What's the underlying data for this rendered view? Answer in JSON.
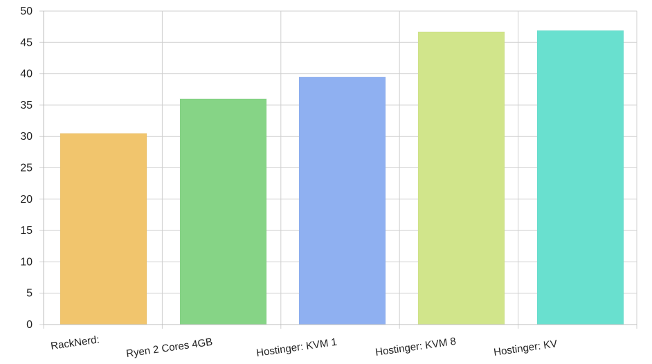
{
  "chart_data": {
    "type": "bar",
    "categories": [
      "RackNerd:",
      "Ryen 2 Cores 4GB",
      "Hostinger: KVM 1",
      "Hostinger: KVM 8",
      "Hostinger: KV"
    ],
    "values": [
      30.5,
      36.0,
      39.5,
      46.7,
      46.9
    ],
    "colors": [
      "#f1c56d",
      "#86d486",
      "#8fb0f1",
      "#d1e58b",
      "#69e0cf"
    ],
    "title": "",
    "xlabel": "",
    "ylabel": "",
    "ylim": [
      0,
      50
    ],
    "yticks": [
      "0",
      "5",
      "10",
      "15",
      "20",
      "25",
      "30",
      "35",
      "40",
      "45",
      "50"
    ],
    "grid": true,
    "legend": "none"
  }
}
